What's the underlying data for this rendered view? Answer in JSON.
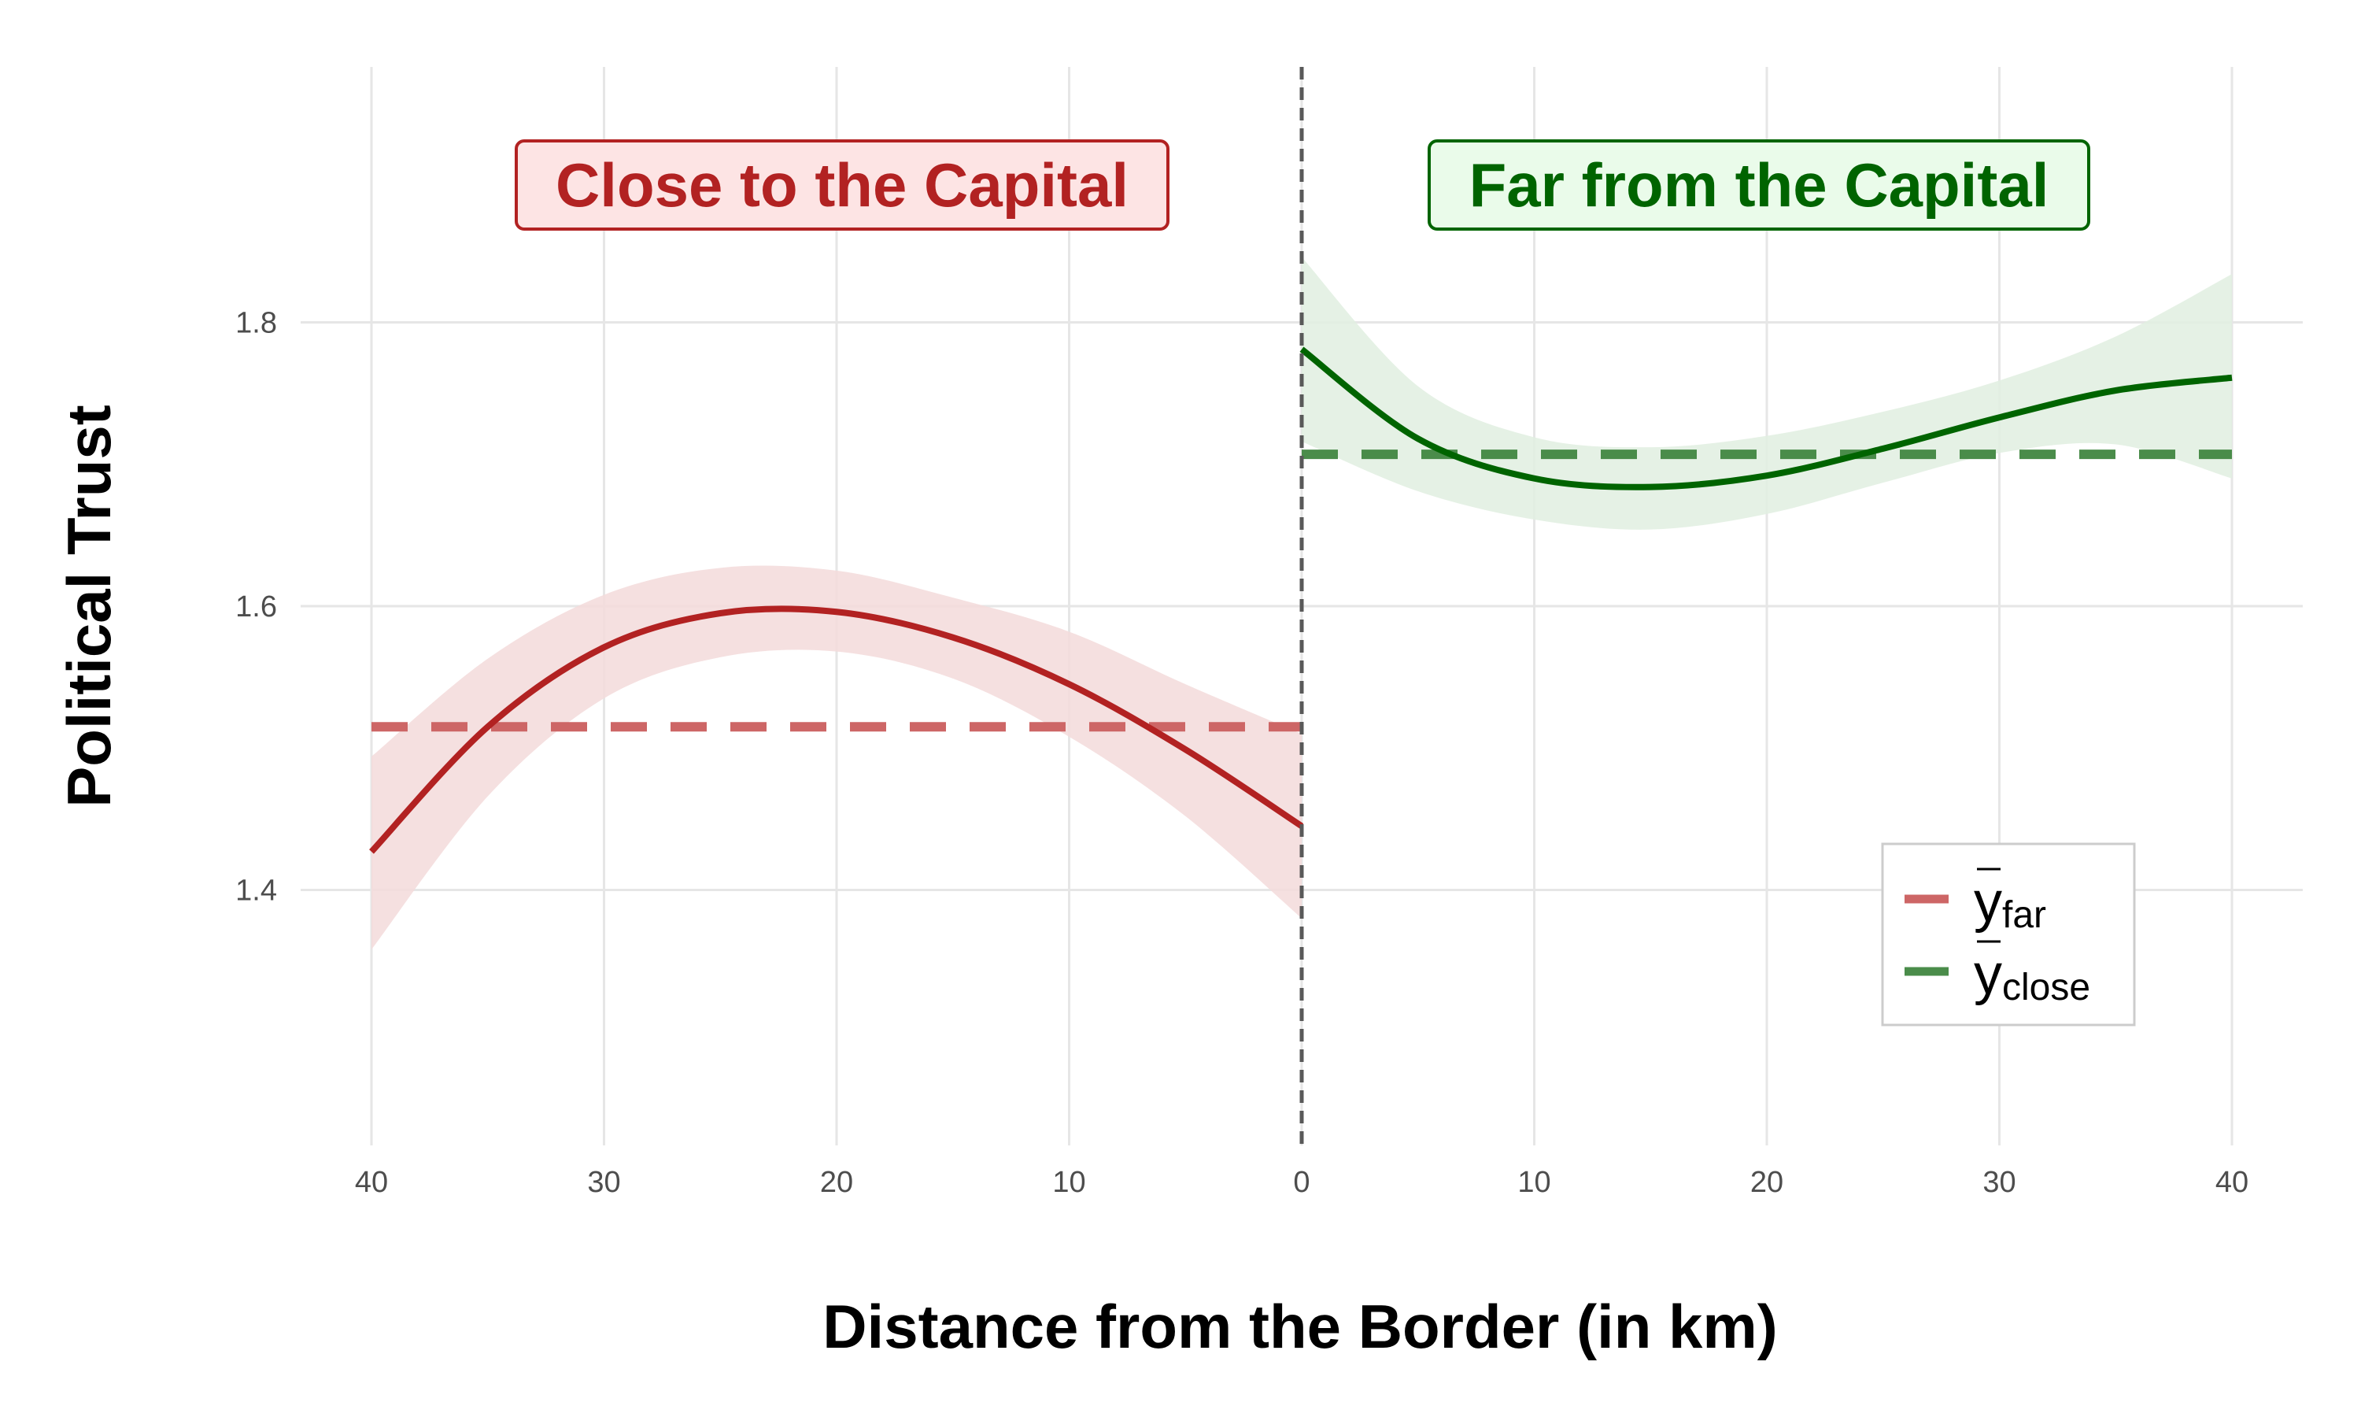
{
  "chart_data": {
    "type": "line",
    "title": "",
    "xlabel": "Distance from the Border (in km)",
    "ylabel": "Political Trust",
    "x_tick_labels": [
      "40",
      "30",
      "20",
      "10",
      "0",
      "10",
      "20",
      "30",
      "40"
    ],
    "y_tick_labels": [
      "1.4",
      "1.6",
      "1.8"
    ],
    "xlim": [
      -40,
      40
    ],
    "ylim": [
      1.22,
      1.98
    ],
    "grid": true,
    "legend_position": "bottom-right",
    "cutoff_line": {
      "x": 0,
      "style": "dashed",
      "color": "#595959"
    },
    "regions": [
      {
        "label": "Close to the Capital",
        "side": "left",
        "color": "#b22222",
        "fill": "#fde4e4"
      },
      {
        "label": "Far from the Capital",
        "side": "right",
        "color": "#006400",
        "fill": "#eafbea"
      }
    ],
    "series": [
      {
        "side": "left",
        "color": "#b22222",
        "band_color": "#f3dada",
        "x": [
          -40,
          -35,
          -30,
          -25,
          -20,
          -15,
          -10,
          -5,
          0
        ],
        "y": [
          1.427,
          1.515,
          1.571,
          1.595,
          1.596,
          1.578,
          1.545,
          1.499,
          1.445
        ],
        "ci_lower": [
          1.358,
          1.466,
          1.535,
          1.564,
          1.568,
          1.549,
          1.508,
          1.452,
          1.38
        ],
        "ci_upper": [
          1.494,
          1.563,
          1.608,
          1.627,
          1.625,
          1.606,
          1.582,
          1.545,
          1.51
        ]
      },
      {
        "side": "right",
        "color": "#006400",
        "band_color": "#e1eee1",
        "x": [
          0,
          5,
          10,
          15,
          20,
          25,
          30,
          35,
          40
        ],
        "y": [
          1.781,
          1.718,
          1.69,
          1.684,
          1.692,
          1.711,
          1.733,
          1.752,
          1.761
        ],
        "ci_lower": [
          1.716,
          1.681,
          1.661,
          1.654,
          1.665,
          1.687,
          1.708,
          1.714,
          1.69
        ],
        "ci_upper": [
          1.846,
          1.755,
          1.719,
          1.712,
          1.72,
          1.737,
          1.759,
          1.79,
          1.834
        ]
      }
    ],
    "reference_lines": [
      {
        "side": "left",
        "value": 1.515,
        "color": "#cd6666",
        "style": "dashed",
        "legend_main": "y",
        "legend_sub": "far"
      },
      {
        "side": "right",
        "value": 1.707,
        "color": "#4a8c4a",
        "style": "dashed",
        "legend_main": "y",
        "legend_sub": "close"
      }
    ]
  }
}
